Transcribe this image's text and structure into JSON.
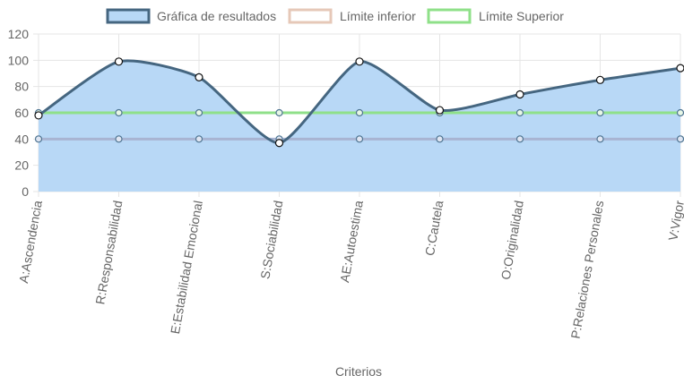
{
  "chart_data": {
    "type": "line",
    "xlabel": "Criterios",
    "ylabel": "",
    "ylim": [
      0,
      120
    ],
    "yticks": [
      0,
      20,
      40,
      60,
      80,
      100,
      120
    ],
    "grid": true,
    "legend_position": "top",
    "categories": [
      "A:Ascendencia",
      "R:Responsabilidad",
      "E:Estabilidad Emocional",
      "S:Sociabilidad",
      "AE:Autoestima",
      "C:Cautela",
      "O:Originalidad",
      "P:Relaciones Personales",
      "V:Vigor"
    ],
    "series": [
      {
        "name": "Gráfica de resultados",
        "values": [
          58,
          99,
          87,
          37,
          99,
          62,
          74,
          85,
          94
        ],
        "color": "#456680",
        "fill": "#b8d8f6",
        "smooth": true,
        "filled": true
      },
      {
        "name": "Límite inferior",
        "values": [
          40,
          40,
          40,
          40,
          40,
          40,
          40,
          40,
          40
        ],
        "color": "#a8b4d2",
        "fill": "#ffffff",
        "legend_color": "#e6c8b8",
        "smooth": false,
        "filled": false
      },
      {
        "name": "Límite Superior",
        "values": [
          60,
          60,
          60,
          60,
          60,
          60,
          60,
          60,
          60
        ],
        "color": "#8fe089",
        "fill": "#ffffff",
        "smooth": false,
        "filled": false
      }
    ]
  }
}
